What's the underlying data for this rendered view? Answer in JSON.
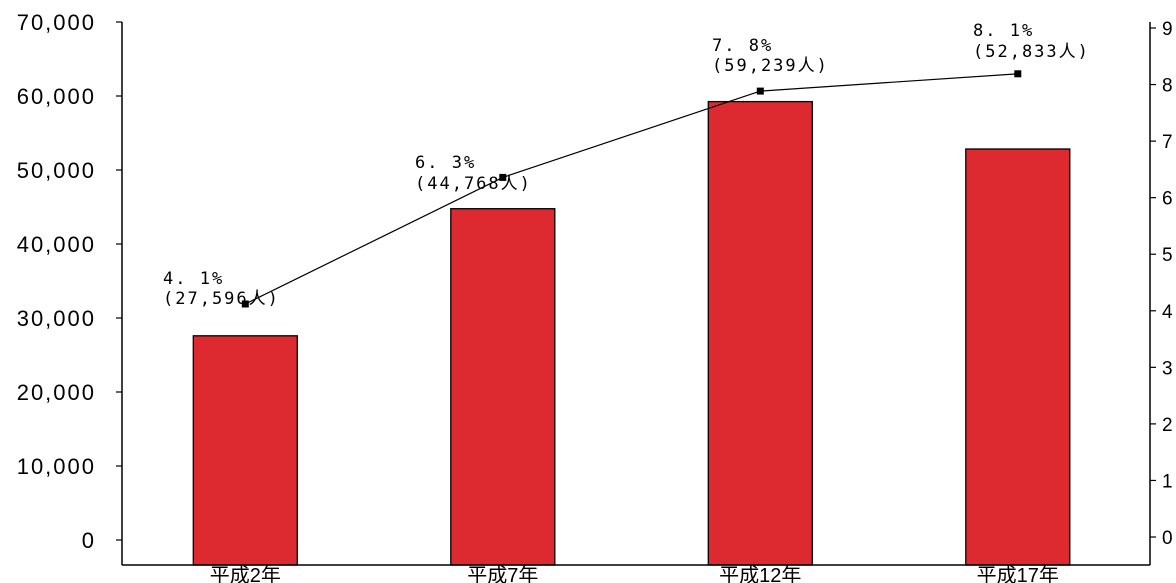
{
  "chart_data": {
    "type": "bar",
    "title": "",
    "xlabel": "",
    "ylabel": "",
    "categories": [
      "平成2年",
      "平成7年",
      "平成12年",
      "平成17年"
    ],
    "series": [
      {
        "type": "bar",
        "axis": "left",
        "values": [
          27596,
          44768,
          59239,
          52833
        ],
        "color": "#DC2A30",
        "border_color": "#000000"
      },
      {
        "type": "line",
        "axis": "right",
        "values": [
          4.1,
          6.3,
          7.8,
          8.1
        ],
        "color": "#000000"
      }
    ],
    "data_labels": [
      {
        "percent": "4. 1%",
        "count": "(27,596人)"
      },
      {
        "percent": "6. 3%",
        "count": "(44,768人)"
      },
      {
        "percent": "7. 8%",
        "count": "(59,239人)"
      },
      {
        "percent": "8. 1%",
        "count": "(52,833人)"
      }
    ],
    "left_axis": {
      "min": 0,
      "max": 70000,
      "tick_labels": [
        "0",
        "10,000",
        "20,000",
        "30,000",
        "40,000",
        "50,000",
        "60,000",
        "70,000"
      ]
    },
    "right_axis": {
      "min": 0,
      "max": 9,
      "tick_labels": [
        "0",
        "1",
        "2",
        "3",
        "4",
        "5",
        "6",
        "7",
        "8",
        "9"
      ]
    },
    "grid": false
  }
}
